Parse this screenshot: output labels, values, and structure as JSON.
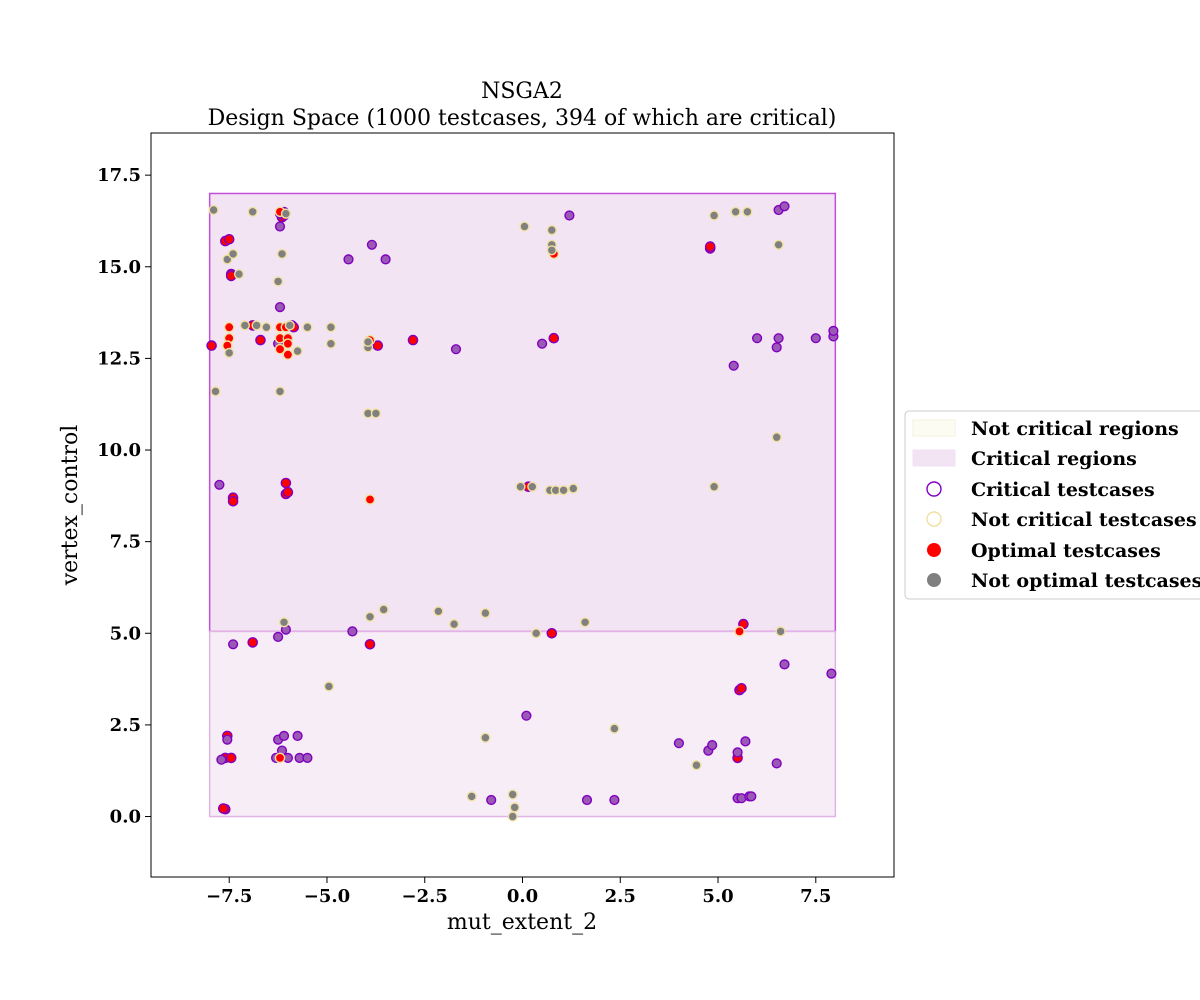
{
  "chart_data": {
    "type": "scatter",
    "title_line1": "NSGA2",
    "title_line2": "Design Space (1000 testcases, 394 of which are critical)",
    "xlabel": "mut_extent_2",
    "ylabel": "vertex_control",
    "xlim": [
      -9.5,
      9.5
    ],
    "ylim": [
      -1.65,
      18.65
    ],
    "x_ticks": [
      -7.5,
      -5.0,
      -2.5,
      0.0,
      2.5,
      5.0,
      7.5
    ],
    "x_tick_labels": [
      "−7.5",
      "−5.0",
      "−2.5",
      "0.0",
      "2.5",
      "5.0",
      "7.5"
    ],
    "y_ticks": [
      0.0,
      2.5,
      5.0,
      7.5,
      10.0,
      12.5,
      15.0,
      17.5
    ],
    "y_tick_labels": [
      "0.0",
      "2.5",
      "5.0",
      "7.5",
      "10.0",
      "12.5",
      "15.0",
      "17.5"
    ],
    "grid": false,
    "legend_placement": "center-right-outside",
    "colors": {
      "critical_region_fill": "#f3e4f4",
      "critical_region_edge": "#c050d8",
      "not_critical_region_fill": "#fcfcf3",
      "critical_edge": "#8000c0",
      "not_critical_edge": "#f0e0a0",
      "optimal_fill": "#ff0000",
      "not_optimal_fill": "#808080",
      "critical_point_fill": "#9b59b6"
    },
    "regions": [
      {
        "kind": "critical",
        "x": [
          -8.0,
          8.0
        ],
        "y": [
          5.05,
          17.0
        ]
      },
      {
        "kind": "critical_lower",
        "x": [
          -8.0,
          8.0
        ],
        "y": [
          0.0,
          5.05
        ]
      }
    ],
    "legend": [
      {
        "label": "Not critical regions",
        "kind": "region-not-critical"
      },
      {
        "label": "Critical regions",
        "kind": "region-critical"
      },
      {
        "label": "Critical testcases",
        "kind": "hollow-critical"
      },
      {
        "label": "Not critical testcases",
        "kind": "hollow-not-critical"
      },
      {
        "label": "Optimal testcases",
        "kind": "optimal"
      },
      {
        "label": "Not optimal testcases",
        "kind": "not-optimal"
      }
    ],
    "series": [
      {
        "name": "Critical, optimal",
        "points": [
          [
            -7.6,
            15.7
          ],
          [
            -7.5,
            15.75
          ],
          [
            -7.45,
            14.8
          ],
          [
            -7.45,
            14.75
          ],
          [
            -6.15,
            16.35
          ],
          [
            -6.1,
            16.4
          ],
          [
            4.8,
            15.5
          ],
          [
            4.8,
            15.55
          ],
          [
            -7.95,
            12.85
          ],
          [
            -6.9,
            13.4
          ],
          [
            -6.7,
            13.0
          ],
          [
            -5.9,
            13.4
          ],
          [
            -5.85,
            13.35
          ],
          [
            -3.7,
            12.85
          ],
          [
            -2.8,
            13.0
          ],
          [
            0.8,
            13.05
          ],
          [
            -6.05,
            9.1
          ],
          [
            -6.05,
            8.8
          ],
          [
            -6.0,
            8.85
          ],
          [
            -7.4,
            8.7
          ],
          [
            -7.4,
            8.6
          ],
          [
            5.65,
            5.25
          ],
          [
            0.75,
            5.0
          ],
          [
            -6.9,
            4.75
          ],
          [
            -3.9,
            4.7
          ],
          [
            5.55,
            3.45
          ],
          [
            5.6,
            3.5
          ],
          [
            -7.55,
            2.2
          ],
          [
            -7.6,
            1.6
          ],
          [
            -7.45,
            1.6
          ],
          [
            5.5,
            1.6
          ],
          [
            -7.6,
            0.2
          ],
          [
            -7.65,
            0.22
          ],
          [
            0.15,
            9.0
          ]
        ]
      },
      {
        "name": "Critical, not optimal",
        "points": [
          [
            -6.2,
            16.45
          ],
          [
            -6.2,
            16.1
          ],
          [
            -6.1,
            16.5
          ],
          [
            1.2,
            16.4
          ],
          [
            6.55,
            16.55
          ],
          [
            6.7,
            16.65
          ],
          [
            -4.45,
            15.2
          ],
          [
            -3.85,
            15.6
          ],
          [
            -3.5,
            15.2
          ],
          [
            -6.2,
            13.9
          ],
          [
            -6.25,
            12.9
          ],
          [
            0.5,
            12.9
          ],
          [
            -1.7,
            12.75
          ],
          [
            6.0,
            13.05
          ],
          [
            5.4,
            12.3
          ],
          [
            6.5,
            12.8
          ],
          [
            6.55,
            13.05
          ],
          [
            7.5,
            13.05
          ],
          [
            7.95,
            13.1
          ],
          [
            7.95,
            13.25
          ],
          [
            -7.75,
            9.05
          ],
          [
            -4.35,
            5.05
          ],
          [
            -6.05,
            5.1
          ],
          [
            -6.25,
            4.9
          ],
          [
            -7.4,
            4.7
          ],
          [
            6.7,
            4.15
          ],
          [
            7.9,
            3.9
          ],
          [
            -7.55,
            2.1
          ],
          [
            -6.25,
            2.1
          ],
          [
            -6.1,
            2.2
          ],
          [
            -5.75,
            2.2
          ],
          [
            -6.3,
            1.6
          ],
          [
            -6.0,
            1.6
          ],
          [
            -5.7,
            1.6
          ],
          [
            -5.5,
            1.6
          ],
          [
            -6.15,
            1.8
          ],
          [
            -7.7,
            1.55
          ],
          [
            0.1,
            2.75
          ],
          [
            4.0,
            2.0
          ],
          [
            4.75,
            1.8
          ],
          [
            4.85,
            1.95
          ],
          [
            5.5,
            1.75
          ],
          [
            5.7,
            2.05
          ],
          [
            6.5,
            1.45
          ],
          [
            5.5,
            0.5
          ],
          [
            5.6,
            0.5
          ],
          [
            5.8,
            0.55
          ],
          [
            5.85,
            0.55
          ],
          [
            1.65,
            0.45
          ],
          [
            2.35,
            0.45
          ],
          [
            -0.8,
            0.45
          ]
        ]
      },
      {
        "name": "Not critical, optimal",
        "points": [
          [
            -6.2,
            16.5
          ],
          [
            0.8,
            15.35
          ],
          [
            -7.5,
            13.35
          ],
          [
            -7.5,
            13.05
          ],
          [
            -7.55,
            12.85
          ],
          [
            -6.2,
            13.35
          ],
          [
            -6.2,
            13.05
          ],
          [
            -6.2,
            12.75
          ],
          [
            -6.05,
            13.35
          ],
          [
            -6.0,
            13.05
          ],
          [
            -6.0,
            12.9
          ],
          [
            -6.0,
            12.6
          ],
          [
            -3.9,
            13.0
          ],
          [
            -3.9,
            8.65
          ],
          [
            5.55,
            5.05
          ],
          [
            -6.2,
            1.6
          ]
        ]
      },
      {
        "name": "Not critical, not optimal",
        "points": [
          [
            -7.9,
            16.55
          ],
          [
            -6.9,
            16.5
          ],
          [
            -6.05,
            16.45
          ],
          [
            0.05,
            16.1
          ],
          [
            0.75,
            16.0
          ],
          [
            0.75,
            15.6
          ],
          [
            0.75,
            15.45
          ],
          [
            4.9,
            16.4
          ],
          [
            5.45,
            16.5
          ],
          [
            5.75,
            16.5
          ],
          [
            6.55,
            15.6
          ],
          [
            -7.55,
            15.2
          ],
          [
            -7.4,
            15.35
          ],
          [
            -7.25,
            14.8
          ],
          [
            -6.15,
            15.35
          ],
          [
            -6.25,
            14.6
          ],
          [
            -7.1,
            13.4
          ],
          [
            -6.8,
            13.4
          ],
          [
            -6.55,
            13.35
          ],
          [
            -5.95,
            13.4
          ],
          [
            -5.5,
            13.35
          ],
          [
            -4.9,
            13.35
          ],
          [
            -7.5,
            12.65
          ],
          [
            -5.75,
            12.7
          ],
          [
            -4.9,
            12.9
          ],
          [
            -3.95,
            12.8
          ],
          [
            -3.95,
            12.95
          ],
          [
            -7.85,
            11.6
          ],
          [
            -6.2,
            11.6
          ],
          [
            -3.95,
            11.0
          ],
          [
            -3.75,
            11.0
          ],
          [
            -0.05,
            9.0
          ],
          [
            0.25,
            9.0
          ],
          [
            0.7,
            8.9
          ],
          [
            0.85,
            8.9
          ],
          [
            1.05,
            8.9
          ],
          [
            1.3,
            8.95
          ],
          [
            4.9,
            9.0
          ],
          [
            6.5,
            10.35
          ],
          [
            -6.1,
            5.3
          ],
          [
            -3.9,
            5.45
          ],
          [
            -3.55,
            5.65
          ],
          [
            -2.15,
            5.6
          ],
          [
            -1.75,
            5.25
          ],
          [
            -0.95,
            5.55
          ],
          [
            0.35,
            5.0
          ],
          [
            1.6,
            5.3
          ],
          [
            6.6,
            5.05
          ],
          [
            -4.95,
            3.55
          ],
          [
            -0.95,
            2.15
          ],
          [
            2.35,
            2.4
          ],
          [
            4.45,
            1.4
          ],
          [
            -1.3,
            0.55
          ],
          [
            -0.25,
            0.6
          ],
          [
            -0.2,
            0.25
          ],
          [
            -0.25,
            0.0
          ]
        ]
      }
    ]
  }
}
